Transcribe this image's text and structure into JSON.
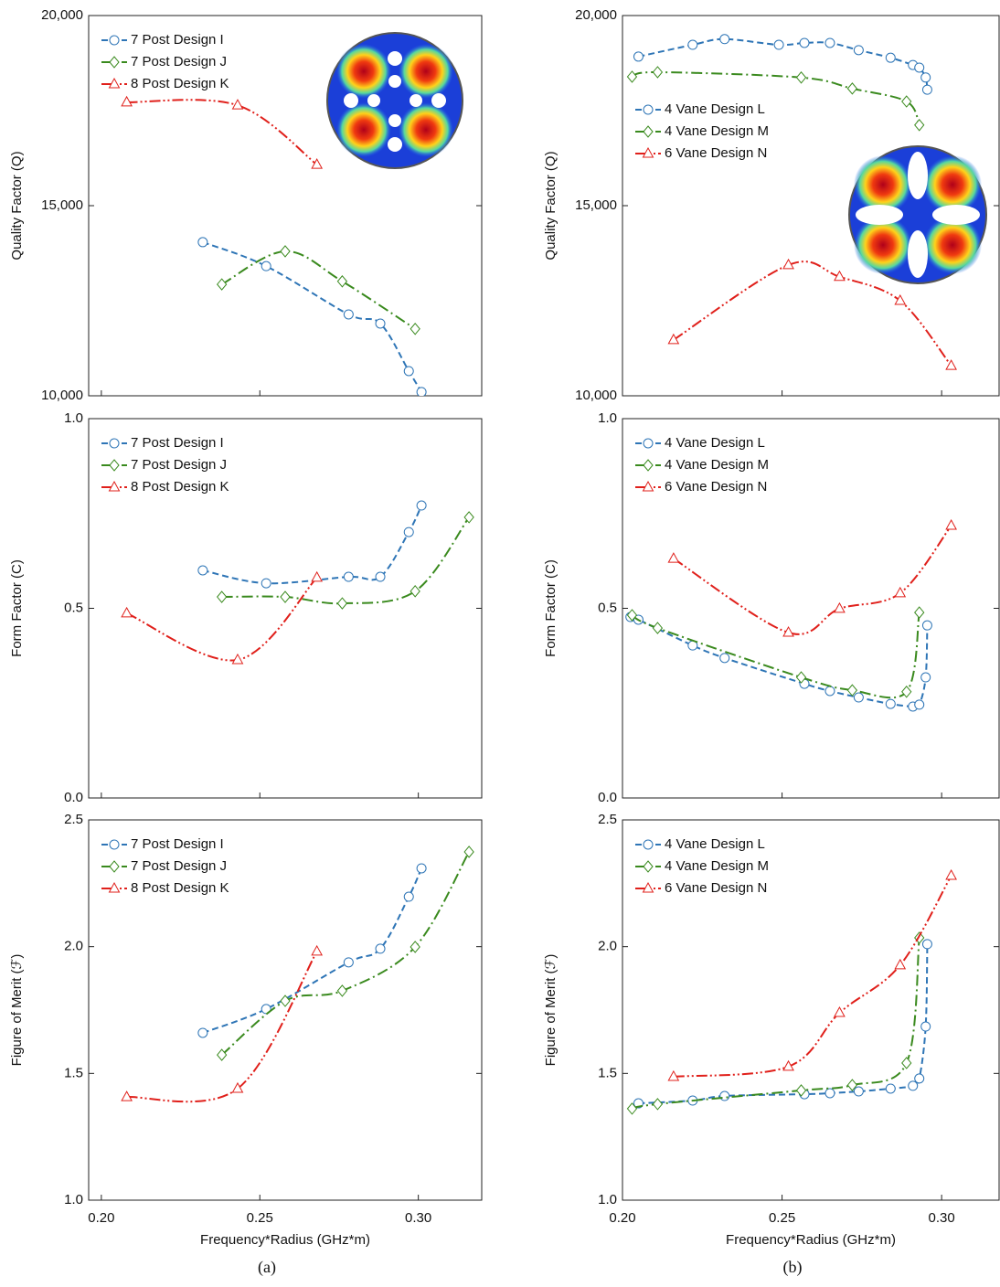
{
  "captions": [
    "(a)",
    "(b)"
  ],
  "chart_data": [
    {
      "type": "line",
      "ylabel": "Quality Factor (Q)",
      "xlim": [
        0.196,
        0.32
      ],
      "xticks": [
        0.2,
        0.25,
        0.3
      ],
      "ylim": [
        10000,
        20000
      ],
      "yticks": [
        {
          "value": 10000,
          "label": "10,000"
        },
        {
          "value": 15000,
          "label": "15,000"
        },
        {
          "value": 20000,
          "label": "20,000"
        }
      ],
      "legend": "upper left",
      "series": [
        {
          "name": "7 Post Design I",
          "color": "#2e75b6",
          "marker": "circle",
          "dash": "7,4",
          "x": [
            0.232,
            0.252,
            0.278,
            0.288,
            0.297,
            0.301
          ],
          "values": [
            14040,
            13410,
            12140,
            11900,
            10650,
            10100
          ]
        },
        {
          "name": "7 Post Design J",
          "color": "#3a8a1e",
          "marker": "diamond",
          "dash": "12,4,2,4",
          "x": [
            0.238,
            0.258,
            0.276,
            0.299
          ],
          "values": [
            12930,
            13800,
            13010,
            11760
          ]
        },
        {
          "name": "8 Post Design K",
          "color": "#e0201b",
          "marker": "triangle",
          "dash": "12,3,2,3,2,3",
          "x": [
            0.208,
            0.243,
            0.268
          ],
          "values": [
            17720,
            17640,
            16080
          ]
        }
      ]
    },
    {
      "type": "line",
      "ylabel": "Quality Factor (Q)",
      "xlim": [
        0.2,
        0.318
      ],
      "xticks": [
        0.2,
        0.25,
        0.3
      ],
      "ylim": [
        10000,
        20000
      ],
      "yticks": [
        {
          "value": 10000,
          "label": "10,000"
        },
        {
          "value": 15000,
          "label": "15,000"
        },
        {
          "value": 20000,
          "label": "20,000"
        }
      ],
      "legend": "upper left",
      "series": [
        {
          "name": "4 Vane Design L",
          "color": "#2e75b6",
          "marker": "circle",
          "dash": "7,4",
          "x": [
            0.205,
            0.222,
            0.232,
            0.249,
            0.257,
            0.265,
            0.274,
            0.284,
            0.291,
            0.293,
            0.295,
            0.2955
          ],
          "values": [
            18920,
            19230,
            19380,
            19230,
            19280,
            19280,
            19090,
            18890,
            18700,
            18630,
            18370,
            18050
          ]
        },
        {
          "name": "4 Vane Design M",
          "color": "#3a8a1e",
          "marker": "diamond",
          "dash": "12,4,2,4",
          "x": [
            0.203,
            0.211,
            0.256,
            0.272,
            0.289,
            0.293
          ],
          "values": [
            18390,
            18510,
            18370,
            18080,
            17740,
            17120
          ]
        },
        {
          "name": "6 Vane Design N",
          "color": "#e0201b",
          "marker": "triangle",
          "dash": "12,3,2,3,2,3",
          "x": [
            0.216,
            0.252,
            0.268,
            0.287,
            0.303
          ],
          "values": [
            11470,
            13440,
            13130,
            12500,
            10790
          ]
        }
      ]
    },
    {
      "type": "line",
      "ylabel": "Form Factor (C)",
      "xlim": [
        0.196,
        0.32
      ],
      "xticks": [
        0.2,
        0.25,
        0.3
      ],
      "ylim": [
        0,
        1
      ],
      "yticks": [
        {
          "value": 0,
          "label": "0.0"
        },
        {
          "value": 0.5,
          "label": "0.5"
        },
        {
          "value": 1,
          "label": "1.0"
        }
      ],
      "legend": "upper left",
      "series": [
        {
          "name": "7 Post Design I",
          "color": "#2e75b6",
          "marker": "circle",
          "dash": "7,4",
          "x": [
            0.232,
            0.252,
            0.278,
            0.288,
            0.297,
            0.301
          ],
          "values": [
            0.6,
            0.566,
            0.583,
            0.583,
            0.701,
            0.771
          ]
        },
        {
          "name": "7 Post Design J",
          "color": "#3a8a1e",
          "marker": "diamond",
          "dash": "12,4,2,4",
          "x": [
            0.238,
            0.258,
            0.276,
            0.299,
            0.316
          ],
          "values": [
            0.53,
            0.53,
            0.513,
            0.545,
            0.74
          ]
        },
        {
          "name": "8 Post Design K",
          "color": "#e0201b",
          "marker": "triangle",
          "dash": "12,3,2,3,2,3",
          "x": [
            0.208,
            0.243,
            0.268
          ],
          "values": [
            0.487,
            0.364,
            0.581
          ]
        }
      ]
    },
    {
      "type": "line",
      "ylabel": "Form Factor (C)",
      "xlim": [
        0.2,
        0.318
      ],
      "xticks": [
        0.2,
        0.25,
        0.3
      ],
      "ylim": [
        0,
        1
      ],
      "yticks": [
        {
          "value": 0,
          "label": "0.0"
        },
        {
          "value": 0.5,
          "label": "0.5"
        },
        {
          "value": 1,
          "label": "1.0"
        }
      ],
      "legend": "upper left",
      "series": [
        {
          "name": "4 Vane Design L",
          "color": "#2e75b6",
          "marker": "circle",
          "dash": "7,4",
          "x": [
            0.2025,
            0.205,
            0.222,
            0.232,
            0.257,
            0.265,
            0.274,
            0.284,
            0.291,
            0.293,
            0.295,
            0.2955
          ],
          "values": [
            0.477,
            0.47,
            0.402,
            0.369,
            0.301,
            0.282,
            0.265,
            0.248,
            0.241,
            0.246,
            0.318,
            0.455
          ]
        },
        {
          "name": "4 Vane Design M",
          "color": "#3a8a1e",
          "marker": "diamond",
          "dash": "12,4,2,4",
          "x": [
            0.203,
            0.211,
            0.256,
            0.272,
            0.289,
            0.293
          ],
          "values": [
            0.482,
            0.448,
            0.318,
            0.284,
            0.28,
            0.489
          ]
        },
        {
          "name": "6 Vane Design N",
          "color": "#e0201b",
          "marker": "triangle",
          "dash": "12,3,2,3,2,3",
          "x": [
            0.216,
            0.252,
            0.268,
            0.287,
            0.303
          ],
          "values": [
            0.631,
            0.436,
            0.499,
            0.54,
            0.718
          ]
        }
      ]
    },
    {
      "type": "line",
      "ylabel": "Figure of Merit (ℱ)",
      "xlabel": "Frequency*Radius (GHz*m)",
      "xlim": [
        0.196,
        0.32
      ],
      "xticks": [
        {
          "value": 0.2,
          "label": "0.20"
        },
        {
          "value": 0.25,
          "label": "0.25"
        },
        {
          "value": 0.3,
          "label": "0.30"
        }
      ],
      "ylim": [
        1,
        2.5
      ],
      "yticks": [
        {
          "value": 1,
          "label": "1.0"
        },
        {
          "value": 1.5,
          "label": "1.5"
        },
        {
          "value": 2,
          "label": "2.0"
        },
        2.5
      ],
      "legend": "upper left",
      "series": [
        {
          "name": "7 Post Design I",
          "color": "#2e75b6",
          "marker": "circle",
          "dash": "7,4",
          "x": [
            0.232,
            0.252,
            0.278,
            0.288,
            0.297,
            0.301
          ],
          "values": [
            1.66,
            1.754,
            1.938,
            1.992,
            2.197,
            2.309
          ]
        },
        {
          "name": "7 Post Design J",
          "color": "#3a8a1e",
          "marker": "diamond",
          "dash": "12,4,2,4",
          "x": [
            0.238,
            0.258,
            0.276,
            0.299,
            0.316
          ],
          "values": [
            1.573,
            1.786,
            1.826,
            1.999,
            2.374
          ]
        },
        {
          "name": "8 Post Design K",
          "color": "#e0201b",
          "marker": "triangle",
          "dash": "12,3,2,3,2,3",
          "x": [
            0.208,
            0.243,
            0.268
          ],
          "values": [
            1.407,
            1.44,
            1.981
          ]
        }
      ]
    },
    {
      "type": "line",
      "ylabel": "Figure of Merit (ℱ)",
      "xlabel": "Frequency*Radius (GHz*m)",
      "xlim": [
        0.2,
        0.318
      ],
      "xticks": [
        {
          "value": 0.2,
          "label": "0.20"
        },
        {
          "value": 0.25,
          "label": "0.25"
        },
        {
          "value": 0.3,
          "label": "0.30"
        }
      ],
      "ylim": [
        1,
        2.5
      ],
      "yticks": [
        {
          "value": 1,
          "label": "1.0"
        },
        {
          "value": 1.5,
          "label": "1.5"
        },
        {
          "value": 2,
          "label": "2.0"
        },
        2.5
      ],
      "legend": "upper left",
      "series": [
        {
          "name": "4 Vane Design L",
          "color": "#2e75b6",
          "marker": "circle",
          "dash": "7,4",
          "x": [
            0.205,
            0.222,
            0.232,
            0.257,
            0.265,
            0.274,
            0.284,
            0.291,
            0.293,
            0.295,
            0.2955
          ],
          "values": [
            1.382,
            1.393,
            1.411,
            1.418,
            1.422,
            1.429,
            1.44,
            1.451,
            1.48,
            1.685,
            2.01
          ]
        },
        {
          "name": "4 Vane Design M",
          "color": "#3a8a1e",
          "marker": "diamond",
          "dash": "12,4,2,4",
          "x": [
            0.203,
            0.211,
            0.256,
            0.272,
            0.289,
            0.293
          ],
          "values": [
            1.361,
            1.379,
            1.433,
            1.454,
            1.541,
            2.035
          ]
        },
        {
          "name": "6 Vane Design N",
          "color": "#e0201b",
          "marker": "triangle",
          "dash": "12,3,2,3,2,3",
          "x": [
            0.216,
            0.252,
            0.268,
            0.287,
            0.303
          ],
          "values": [
            1.487,
            1.527,
            1.739,
            1.927,
            2.28
          ]
        }
      ]
    }
  ]
}
